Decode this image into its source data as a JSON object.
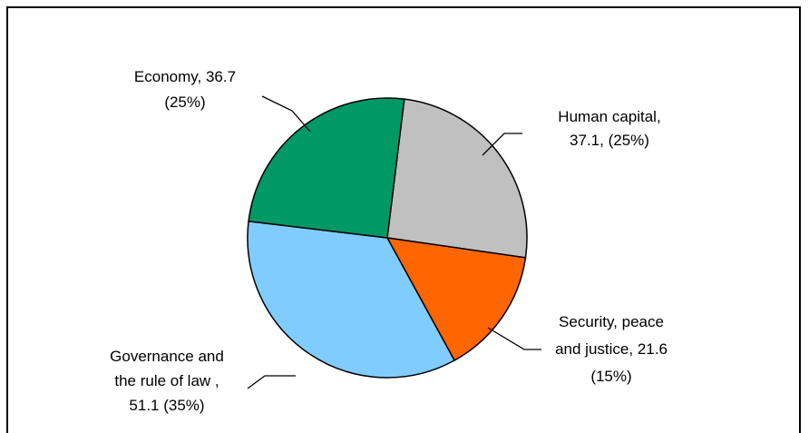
{
  "chart_data": {
    "type": "pie",
    "title": "",
    "slices": [
      {
        "name": "Human capital",
        "value": 37.1,
        "percent": "25%",
        "color": "#c0c0c0",
        "label_lines": [
          "Human capital,",
          "37.1, (25%)"
        ]
      },
      {
        "name": "Security, peace and justice",
        "value": 21.6,
        "percent": "15%",
        "color": "#ff6600",
        "label_lines": [
          "Security, peace",
          "and justice, 21.6",
          "(15%)"
        ]
      },
      {
        "name": "Governance and the rule of law",
        "value": 51.1,
        "percent": "35%",
        "color": "#80ccff",
        "label_lines": [
          "Governance and",
          "the rule of law ,",
          "51.1 (35%)"
        ]
      },
      {
        "name": "Economy",
        "value": 36.7,
        "percent": "25%",
        "color": "#009966",
        "label_lines": [
          "Economy, 36.7",
          "(25%)"
        ]
      }
    ],
    "start_angle_deg": 7,
    "direction": "clockwise",
    "legend": "none"
  }
}
